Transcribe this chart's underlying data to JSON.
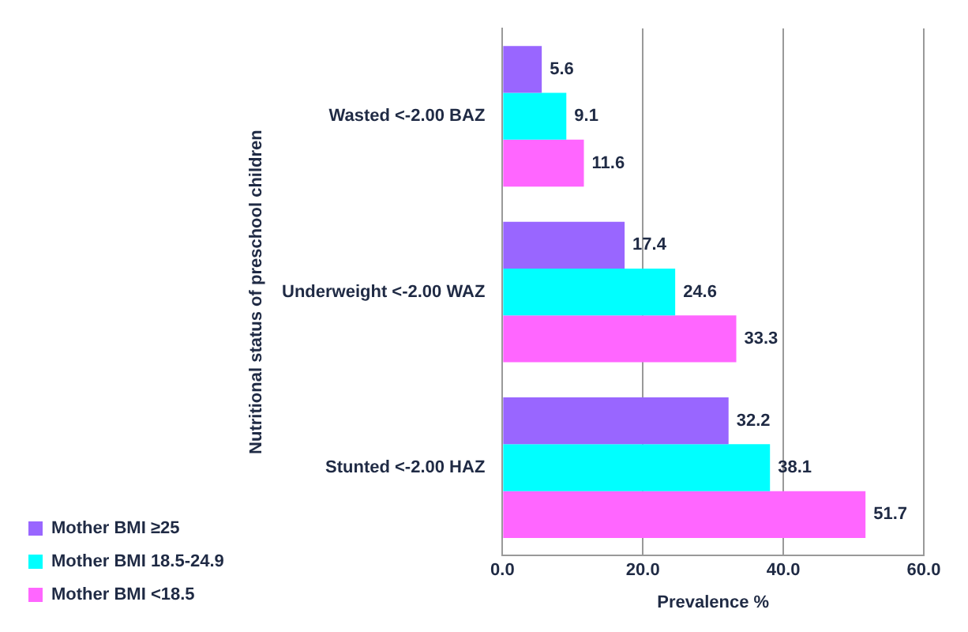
{
  "chart_data": {
    "type": "bar",
    "orientation": "horizontal",
    "categories": [
      "Wasted <-2.00 BAZ",
      "Underweight <-2.00 WAZ",
      "Stunted <-2.00 HAZ"
    ],
    "series": [
      {
        "name": "Mother BMI ≥25",
        "color": "#9966ff",
        "values": [
          5.6,
          17.4,
          32.2
        ]
      },
      {
        "name": "Mother BMI 18.5-24.9",
        "color": "#00ffff",
        "values": [
          9.1,
          24.6,
          38.1
        ]
      },
      {
        "name": "Mother BMI <18.5",
        "color": "#ff66ff",
        "values": [
          11.6,
          33.3,
          51.7
        ]
      }
    ],
    "xlabel": "Prevalence %",
    "ylabel": "Nutritional status of preschool children",
    "xlim": [
      0,
      60
    ],
    "xticks": [
      {
        "value": 0,
        "label": "0.0"
      },
      {
        "value": 20,
        "label": "20.0"
      },
      {
        "value": 40,
        "label": "40.0"
      },
      {
        "value": 60,
        "label": "60.0"
      }
    ],
    "grid": "x",
    "legend": "bottom left",
    "data_labels": true
  }
}
